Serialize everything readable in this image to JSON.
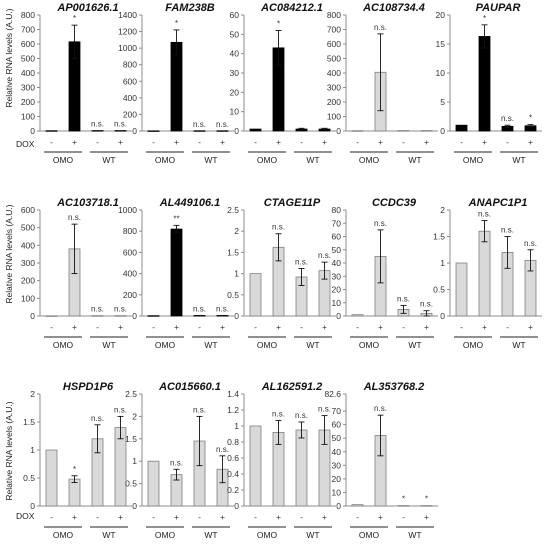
{
  "figure": {
    "ylabel": "Relative RNA levels (A.U.)",
    "treatment_label": "DOX",
    "treatment_signs": [
      "-",
      "+",
      "-",
      "+"
    ],
    "groups": [
      "OMO",
      "WT"
    ],
    "colors": {
      "axis": "#8c8c8c",
      "filled": "#000000",
      "open": "#d9d9d9",
      "outline": "#7f7f7f"
    }
  },
  "chart_data": [
    {
      "type": "bar",
      "title": "AP001626.1",
      "ylim": [
        0,
        800
      ],
      "ticks": [
        0,
        100,
        200,
        300,
        400,
        500,
        600,
        700,
        800
      ],
      "values": [
        2,
        615,
        3,
        3
      ],
      "errors": [
        0,
        115,
        0,
        0
      ],
      "fill": [
        "black",
        "black",
        "black",
        "black"
      ],
      "labels": [
        "",
        "*",
        "n.s.",
        "n.s."
      ]
    },
    {
      "type": "bar",
      "title": "FAM238B",
      "ylim": [
        0,
        1400
      ],
      "ticks": [
        0,
        200,
        400,
        600,
        800,
        1000,
        1200,
        1400
      ],
      "values": [
        2,
        1070,
        3,
        3
      ],
      "errors": [
        0,
        150,
        0,
        0
      ],
      "fill": [
        "black",
        "black",
        "black",
        "black"
      ],
      "labels": [
        "",
        "*",
        "n.s.",
        "n.s."
      ]
    },
    {
      "type": "bar",
      "title": "AC084212.1",
      "ylim": [
        0,
        60
      ],
      "ticks": [
        0,
        10,
        20,
        30,
        40,
        50,
        60
      ],
      "values": [
        1,
        43,
        1,
        1
      ],
      "errors": [
        0,
        9,
        0.4,
        0.4
      ],
      "fill": [
        "black",
        "black",
        "black",
        "black"
      ],
      "labels": [
        "",
        "*",
        "",
        ""
      ]
    },
    {
      "type": "bar",
      "title": "AC108734.4",
      "ylim": [
        0,
        800
      ],
      "ticks": [
        0,
        100,
        200,
        300,
        400,
        500,
        600,
        700,
        800
      ],
      "values": [
        2,
        405,
        3,
        3
      ],
      "errors": [
        0,
        265,
        0,
        0
      ],
      "fill": [
        "grey",
        "grey",
        "grey",
        "grey"
      ],
      "labels": [
        "",
        "n.s.",
        "",
        ""
      ]
    },
    {
      "type": "bar",
      "title": "PAUPAR",
      "ylim": [
        0,
        20
      ],
      "ticks": [
        0,
        5,
        10,
        15,
        20
      ],
      "values": [
        1,
        16.3,
        0.8,
        0.9
      ],
      "errors": [
        0,
        2,
        0.2,
        0.2
      ],
      "fill": [
        "black",
        "black",
        "black",
        "black"
      ],
      "labels": [
        "",
        "*",
        "n.s.",
        "*"
      ]
    },
    {
      "type": "bar",
      "title": "AC103718.1",
      "ylim": [
        0,
        600
      ],
      "ticks": [
        0,
        100,
        200,
        300,
        400,
        500,
        600
      ],
      "values": [
        1,
        380,
        2,
        2
      ],
      "errors": [
        0,
        140,
        0,
        0
      ],
      "fill": [
        "grey",
        "grey",
        "grey",
        "grey"
      ],
      "labels": [
        "",
        "n.s.",
        "n.s.",
        "n.s."
      ]
    },
    {
      "type": "bar",
      "title": "AL449106.1",
      "ylim": [
        0,
        1000
      ],
      "ticks": [
        0,
        200,
        400,
        600,
        800,
        1000
      ],
      "values": [
        3,
        820,
        5,
        5
      ],
      "errors": [
        0,
        35,
        0,
        0
      ],
      "fill": [
        "black",
        "black",
        "black",
        "black"
      ],
      "labels": [
        "",
        "**",
        "n.s.",
        "n.s."
      ]
    },
    {
      "type": "bar",
      "title": "CTAGE11P",
      "ylim": [
        0,
        2.5
      ],
      "ticks": [
        0,
        0.5,
        1,
        1.5,
        2,
        2.5
      ],
      "values": [
        1,
        1.62,
        0.92,
        1.07
      ],
      "errors": [
        0,
        0.32,
        0.2,
        0.2
      ],
      "fill": [
        "grey",
        "grey",
        "grey",
        "grey"
      ],
      "labels": [
        "",
        "n.s.",
        "n.s.",
        "n.s."
      ]
    },
    {
      "type": "bar",
      "title": "CCDC39",
      "ylim": [
        0,
        80
      ],
      "ticks": [
        0,
        10,
        20,
        30,
        40,
        50,
        60,
        70,
        80
      ],
      "values": [
        1,
        45,
        5,
        2
      ],
      "errors": [
        0,
        20,
        3,
        2
      ],
      "fill": [
        "grey",
        "grey",
        "grey",
        "grey"
      ],
      "labels": [
        "",
        "n.s.",
        "n.s.",
        "n.s."
      ]
    },
    {
      "type": "bar",
      "title": "ANAPC1P1",
      "ylim": [
        0,
        2
      ],
      "ticks": [
        0,
        0.5,
        1,
        1.5,
        2
      ],
      "values": [
        1,
        1.6,
        1.2,
        1.05
      ],
      "errors": [
        0,
        0.2,
        0.3,
        0.2
      ],
      "fill": [
        "grey",
        "grey",
        "grey",
        "grey"
      ],
      "labels": [
        "",
        "n.s.",
        "n.s.",
        "n.s."
      ]
    },
    {
      "type": "bar",
      "title": "HSPD1P6",
      "ylim": [
        0,
        2
      ],
      "ticks": [
        0,
        0.5,
        1,
        1.5,
        2
      ],
      "values": [
        1,
        0.48,
        1.2,
        1.4
      ],
      "errors": [
        0,
        0.06,
        0.25,
        0.2
      ],
      "fill": [
        "grey",
        "grey",
        "grey",
        "grey"
      ],
      "labels": [
        "",
        "*",
        "n.s.",
        "n.s."
      ]
    },
    {
      "type": "bar",
      "title": "AC015660.1",
      "ylim": [
        0,
        2.5
      ],
      "ticks": [
        0,
        0.5,
        1,
        1.5,
        2,
        2.5
      ],
      "values": [
        1,
        0.7,
        1.45,
        0.82
      ],
      "errors": [
        0,
        0.12,
        0.55,
        0.3
      ],
      "fill": [
        "grey",
        "grey",
        "grey",
        "grey"
      ],
      "labels": [
        "",
        "n.s.",
        "n.s.",
        "n.s."
      ]
    },
    {
      "type": "bar",
      "title": "AL162591.2",
      "ylim": [
        0,
        1.4
      ],
      "ticks": [
        0,
        0.2,
        0.4,
        0.6,
        0.8,
        1,
        1.2,
        1.4
      ],
      "values": [
        1,
        0.92,
        0.95,
        0.95
      ],
      "errors": [
        0,
        0.15,
        0.1,
        0.18
      ],
      "fill": [
        "grey",
        "grey",
        "grey",
        "grey"
      ],
      "labels": [
        "",
        "n.s.",
        "n.s.",
        "n.s."
      ]
    },
    {
      "type": "bar",
      "title": "AL353768.2",
      "ylim": [
        0,
        82.6
      ],
      "ticks": [
        0,
        10,
        20,
        30,
        40,
        50,
        60,
        70,
        82.6
      ],
      "values": [
        1,
        52,
        0.3,
        0.3
      ],
      "errors": [
        0,
        15,
        0,
        0
      ],
      "fill": [
        "grey",
        "grey",
        "grey",
        "grey"
      ],
      "labels": [
        "",
        "n.s.",
        "*",
        "*"
      ]
    }
  ]
}
